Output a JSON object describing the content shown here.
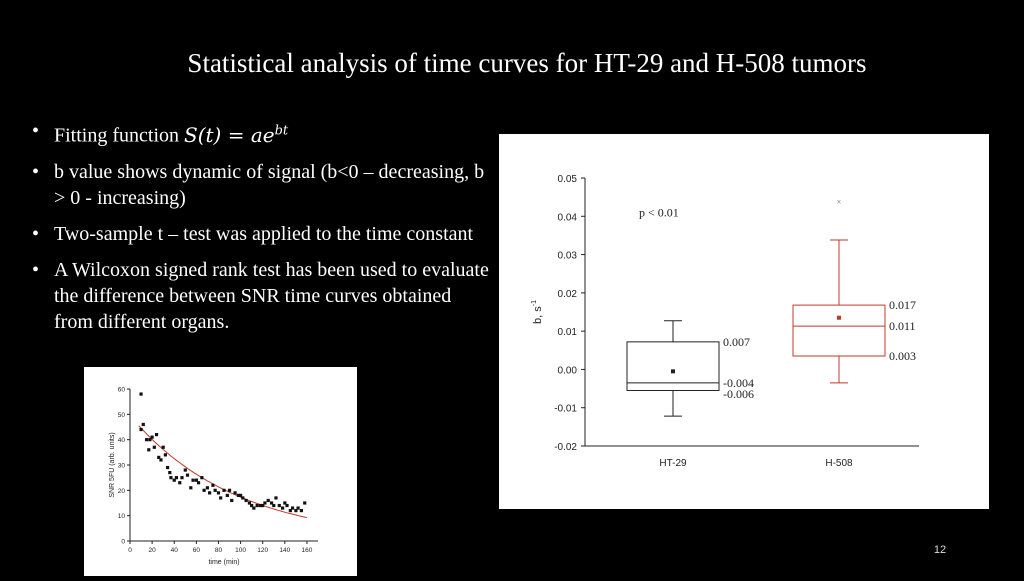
{
  "slide": {
    "title": "Statistical analysis of time curves for HT-29 and H-508 tumors",
    "number": "12",
    "bullets": [
      {
        "text": "Fitting function ",
        "math": "S(t) = ae",
        "math_sup": "bt"
      },
      {
        "text": "b value shows dynamic of signal (b<0 – decreasing, b > 0 - increasing)"
      },
      {
        "text": "Two-sample t – test was applied to the time constant"
      },
      {
        "text": "A Wilcoxon signed rank test has been used to evaluate the difference between SNR time curves obtained from different organs."
      }
    ]
  },
  "chart_data": [
    {
      "type": "box",
      "ylabel": "b, s",
      "ylabel_sup": "-1",
      "ylim": [
        -0.02,
        0.05
      ],
      "yticks": [
        "-0.02",
        "-0.01",
        "0.00",
        "0.01",
        "0.02",
        "0.03",
        "0.04",
        "0.05"
      ],
      "categories": [
        "HT-29",
        "H-508"
      ],
      "annotation": "p < 0.01",
      "colors": {
        "HT-29": "#222222",
        "H-508": "#c0392b"
      },
      "boxes": [
        {
          "name": "HT-29",
          "whisker_low": -0.0122,
          "q1": -0.0055,
          "median": -0.0035,
          "q3": 0.0072,
          "whisker_high": 0.0127,
          "mean": -0.0005,
          "outliers": [],
          "labels": {
            "q3": "0.007",
            "median": "-0.004",
            "q1": "-0.006"
          }
        },
        {
          "name": "H-508",
          "whisker_low": -0.0035,
          "q1": 0.0035,
          "median": 0.0113,
          "q3": 0.0168,
          "whisker_high": 0.0338,
          "mean": 0.0135,
          "outliers": [
            0.0438
          ],
          "labels": {
            "q3": "0.017",
            "median": "0.011",
            "q1": "0.003"
          }
        }
      ]
    },
    {
      "type": "scatter",
      "xlabel": "time (min)",
      "ylabel": "SNR 5FU (arb. units)",
      "xlim": [
        0,
        170
      ],
      "ylim": [
        0,
        60
      ],
      "xticks": [
        "0",
        "20",
        "40",
        "60",
        "80",
        "100",
        "120",
        "140",
        "160"
      ],
      "yticks": [
        "0",
        "10",
        "20",
        "30",
        "40",
        "50",
        "60"
      ],
      "points": [
        [
          10,
          58
        ],
        [
          10,
          44
        ],
        [
          12,
          46
        ],
        [
          15,
          40
        ],
        [
          17,
          36
        ],
        [
          18,
          40
        ],
        [
          20,
          41
        ],
        [
          22,
          37
        ],
        [
          24,
          42
        ],
        [
          26,
          33
        ],
        [
          28,
          32
        ],
        [
          30,
          37
        ],
        [
          32,
          34
        ],
        [
          34,
          29
        ],
        [
          36,
          27
        ],
        [
          37,
          25
        ],
        [
          40,
          24
        ],
        [
          42,
          25
        ],
        [
          45,
          23
        ],
        [
          47,
          25
        ],
        [
          50,
          28
        ],
        [
          52,
          26
        ],
        [
          55,
          21
        ],
        [
          57,
          24
        ],
        [
          60,
          24
        ],
        [
          62,
          23
        ],
        [
          65,
          25
        ],
        [
          67,
          20
        ],
        [
          70,
          21
        ],
        [
          72,
          19
        ],
        [
          75,
          22
        ],
        [
          77,
          20
        ],
        [
          80,
          19
        ],
        [
          82,
          17
        ],
        [
          85,
          20
        ],
        [
          88,
          18
        ],
        [
          90,
          20
        ],
        [
          92,
          16
        ],
        [
          95,
          19
        ],
        [
          98,
          18
        ],
        [
          100,
          18
        ],
        [
          102,
          17
        ],
        [
          105,
          16
        ],
        [
          108,
          15
        ],
        [
          110,
          14
        ],
        [
          112,
          13
        ],
        [
          115,
          14
        ],
        [
          118,
          14
        ],
        [
          120,
          14
        ],
        [
          122,
          15
        ],
        [
          125,
          16
        ],
        [
          128,
          15
        ],
        [
          130,
          14
        ],
        [
          132,
          17
        ],
        [
          135,
          14
        ],
        [
          138,
          13
        ],
        [
          140,
          15
        ],
        [
          142,
          14
        ],
        [
          145,
          12
        ],
        [
          147,
          13
        ],
        [
          150,
          12
        ],
        [
          152,
          13
        ],
        [
          155,
          12
        ],
        [
          158,
          15
        ]
      ],
      "fit": {
        "a": 49.5,
        "b": -0.0105,
        "color": "#c0392b"
      }
    }
  ]
}
